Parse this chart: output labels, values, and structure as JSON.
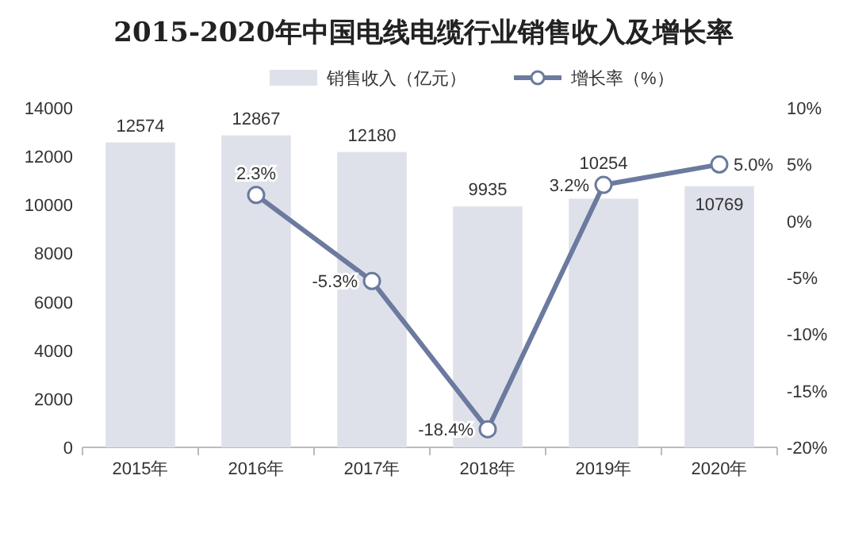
{
  "chart_data": {
    "type": "bar",
    "title": "2015-2020年中国电线电缆行业销售收入及增长率",
    "categories": [
      "2015年",
      "2016年",
      "2017年",
      "2018年",
      "2019年",
      "2020年"
    ],
    "series": [
      {
        "name": "销售收入（亿元）",
        "color": "#dfe1ea",
        "values": [
          12574,
          12867,
          12180,
          9935,
          10254,
          10769
        ],
        "value_labels": [
          "12574",
          "12867",
          "12180",
          "9935",
          "10254",
          "10769"
        ]
      },
      {
        "name": "增长率（%）",
        "type": "line",
        "axis": "y2",
        "color": "#6b7a9e",
        "marker": "circle",
        "values": [
          null,
          2.3,
          -5.3,
          -18.4,
          3.2,
          5.0
        ],
        "value_labels": [
          null,
          "2.3%",
          "-5.3%",
          "-18.4%",
          "3.2%",
          "5.0%"
        ]
      }
    ],
    "ylim": [
      0,
      14000
    ],
    "yticks": [
      0,
      2000,
      4000,
      6000,
      8000,
      10000,
      12000,
      14000
    ],
    "y2lim": [
      -20,
      10
    ],
    "y2ticks": [
      {
        "value": -20,
        "label": "-20%"
      },
      {
        "value": -15,
        "label": "-15%"
      },
      {
        "value": -10,
        "label": "-10%"
      },
      {
        "value": -5,
        "label": "-5%"
      },
      {
        "value": 0,
        "label": "0%"
      },
      {
        "value": 5,
        "label": "5%"
      },
      {
        "value": 10,
        "label": "10%"
      }
    ],
    "legend": "top",
    "grid": false
  }
}
